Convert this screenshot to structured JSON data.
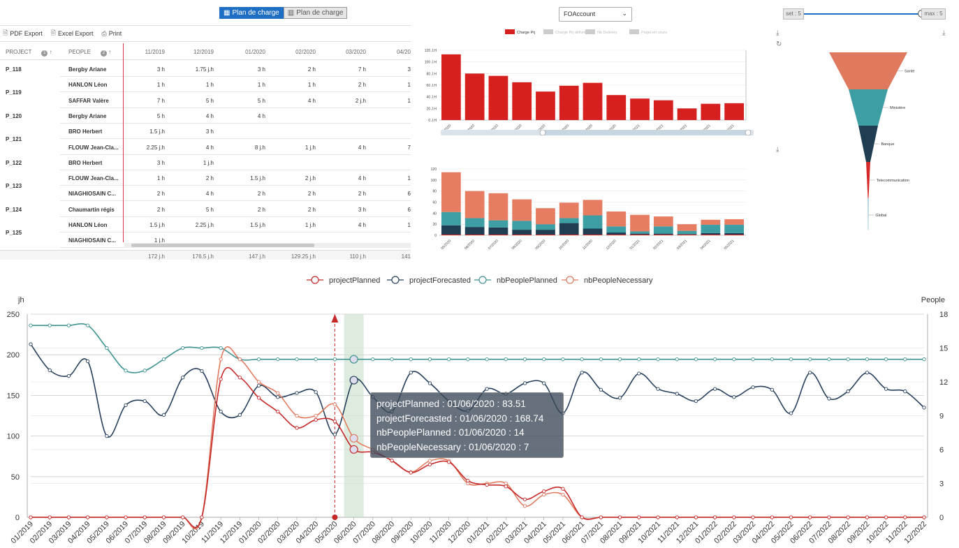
{
  "toggle": {
    "active_label": "Plan de charge",
    "inactive_label": "Plan de charge"
  },
  "toolbar": {
    "pdf": "PDF Export",
    "excel": "Excel Export",
    "print": "Print"
  },
  "grid": {
    "headers": {
      "project": "PROJECT",
      "people": "PEOPLE",
      "sort1": "1",
      "sort2": "2"
    },
    "months": [
      "11/2019",
      "12/2019",
      "01/2020",
      "02/2020",
      "03/2020",
      "04/20"
    ],
    "rows": [
      {
        "project": "P_118",
        "person": "Bergby Ariane",
        "values": [
          "3 h",
          "1.75 j.h",
          "3 h",
          "2 h",
          "7 h",
          "3"
        ]
      },
      {
        "project": "",
        "person": "HANLON Léon",
        "values": [
          "1 h",
          "1 h",
          "1 h",
          "1 h",
          "2 h",
          "1"
        ]
      },
      {
        "project": "",
        "person": "SAFFAR Valère",
        "values": [
          "7 h",
          "5 h",
          "5 h",
          "4 h",
          "2 j.h",
          "1"
        ]
      },
      {
        "project": "P_120",
        "person": "Bergby Ariane",
        "values": [
          "5 h",
          "4 h",
          "4 h",
          "",
          "",
          ""
        ]
      },
      {
        "project": "",
        "person": "BRO Herbert",
        "values": [
          "1.5 j.h",
          "3 h",
          "",
          "",
          "",
          ""
        ]
      },
      {
        "project": "",
        "person": "FLOUW Jean-Cla...",
        "values": [
          "2.25 j.h",
          "4 h",
          "8 j.h",
          "1 j.h",
          "4 h",
          "7"
        ]
      },
      {
        "project": "P_122",
        "person": "BRO Herbert",
        "values": [
          "3 h",
          "1 j.h",
          "",
          "",
          "",
          ""
        ]
      },
      {
        "project": "",
        "person": "FLOUW Jean-Cla...",
        "values": [
          "1 h",
          "2 h",
          "1.5 j.h",
          "2 j.h",
          "4 h",
          "1"
        ]
      },
      {
        "project": "",
        "person": "NIAGHIOSAIN C...",
        "values": [
          "2 h",
          "4 h",
          "2 h",
          "2 h",
          "2 h",
          "6"
        ]
      },
      {
        "project": "P_124",
        "person": "Chaumartin régis",
        "values": [
          "2 h",
          "5 h",
          "2 h",
          "2 h",
          "3 h",
          "6"
        ]
      },
      {
        "project": "",
        "person": "HANLON Léon",
        "values": [
          "1.5 j.h",
          "2.25 j.h",
          "1.5 j.h",
          "1 j.h",
          "4 h",
          "1"
        ]
      },
      {
        "project": "",
        "person": "NIAGHIOSAIN C...",
        "values": [
          "1 j.h",
          "",
          "",
          "",
          "",
          ""
        ]
      }
    ],
    "group_labels": [
      {
        "label": "P_119"
      },
      {
        "label": "P_121"
      },
      {
        "label": "P_123"
      },
      {
        "label": "P_125"
      }
    ],
    "totals": [
      "172 j.h",
      "176.5 j.h",
      "147 j.h",
      "129.25 j.h",
      "110 j.h",
      "141"
    ]
  },
  "account_select": {
    "value": "FOAccount"
  },
  "slider": {
    "left_label": "set : 5",
    "right_label": "max : 5",
    "value": 1.0
  },
  "bar_legend": [
    "Charge Prj",
    "Charge Prj délivrée",
    "Nb Delivery",
    "Projet en cours"
  ],
  "bar_months": [
    "05/2020",
    "06/2020",
    "07/2020",
    "08/2020",
    "09/2020",
    "10/2020",
    "11/2020",
    "12/2020",
    "01/2021",
    "02/2021",
    "03/2021",
    "04/2021",
    "05/2021"
  ],
  "bar_values": [
    113,
    80,
    76,
    65,
    49,
    59,
    64,
    43,
    37,
    34,
    20,
    28,
    29
  ],
  "bar_axis": {
    "ticks": [
      "0 J.H",
      "20 J.H",
      "40 J.H",
      "60 J.H",
      "80 J.H",
      "100 J.H",
      "120 J.H"
    ],
    "ymax": 120
  },
  "stack_axis": {
    "ticks": [
      "0",
      "20",
      "40",
      "60",
      "80",
      "100",
      "120"
    ],
    "ymax": 120
  },
  "stack_values": [
    {
      "navy": 18,
      "teal": 24,
      "salmon": 72
    },
    {
      "navy": 15,
      "teal": 16,
      "salmon": 49
    },
    {
      "navy": 14,
      "teal": 13,
      "salmon": 49
    },
    {
      "navy": 10,
      "teal": 16,
      "salmon": 39
    },
    {
      "navy": 10,
      "teal": 10,
      "salmon": 29
    },
    {
      "navy": 22,
      "teal": 9,
      "salmon": 28
    },
    {
      "navy": 12,
      "teal": 24,
      "salmon": 28
    },
    {
      "navy": 5,
      "teal": 11,
      "salmon": 27
    },
    {
      "navy": 3,
      "teal": 4,
      "salmon": 30
    },
    {
      "navy": 3,
      "teal": 13,
      "salmon": 18
    },
    {
      "navy": 2,
      "teal": 6,
      "salmon": 12
    },
    {
      "navy": 4,
      "teal": 15,
      "salmon": 9
    },
    {
      "navy": 4,
      "teal": 15,
      "salmon": 10
    }
  ],
  "funnel": [
    {
      "label": "Sante",
      "color": "#e07a5f"
    },
    {
      "label": "Ministère",
      "color": "#3d9ea3"
    },
    {
      "label": "Banque",
      "color": "#1f3e52"
    },
    {
      "label": "Telecommunication",
      "color": "#d62828"
    },
    {
      "label": "Global",
      "color": "#5aa6b4"
    }
  ],
  "legend": [
    "projectPlanned",
    "projectForecasted",
    "nbPeoplePlanned",
    "nbPeopleNecessary"
  ],
  "colors": {
    "planned": "#c62828",
    "forecasted": "#263f5c",
    "peoplePlanned": "#3f9391",
    "peopleNecessary": "#e07a5f",
    "bar": "#d62020"
  },
  "chart_data": {
    "type": "line",
    "xlabel": "",
    "ylabel": "jh",
    "y2label": "People",
    "ylim": [
      0,
      250
    ],
    "y2lim": [
      0,
      18
    ],
    "yticks": [
      "0",
      "50",
      "100",
      "150",
      "200",
      "250"
    ],
    "y2ticks": [
      "0",
      "3",
      "6",
      "9",
      "12",
      "15",
      "18"
    ],
    "x": [
      "01/2019",
      "02/2019",
      "03/2019",
      "04/2019",
      "05/2019",
      "06/2019",
      "07/2019",
      "08/2019",
      "09/2019",
      "10/2019",
      "11/2019",
      "12/2019",
      "01/2020",
      "02/2020",
      "03/2020",
      "04/2020",
      "05/2020",
      "06/2020",
      "07/2020",
      "08/2020",
      "09/2020",
      "10/2020",
      "11/2020",
      "12/2020",
      "01/2021",
      "02/2021",
      "03/2021",
      "04/2021",
      "05/2021",
      "06/2021",
      "07/2021",
      "08/2021",
      "09/2021",
      "10/2021",
      "11/2021",
      "12/2021",
      "01/2022",
      "02/2022",
      "03/2022",
      "04/2022",
      "05/2022",
      "06/2022",
      "07/2022",
      "08/2022",
      "09/2022",
      "10/2022",
      "11/2022",
      "12/2022"
    ],
    "series": [
      {
        "name": "projectPlanned",
        "axis": "left",
        "values": [
          0,
          0,
          0,
          0,
          0,
          0,
          0,
          0,
          0,
          0,
          170,
          172,
          147,
          130,
          110,
          120,
          118,
          83.51,
          80,
          70,
          55,
          65,
          68,
          45,
          40,
          38,
          22,
          32,
          35,
          0,
          0,
          0,
          0,
          0,
          0,
          0,
          0,
          0,
          0,
          0,
          0,
          0,
          0,
          0,
          0,
          0,
          0,
          0
        ]
      },
      {
        "name": "projectForecasted",
        "axis": "left",
        "values": [
          213,
          181,
          174,
          192,
          100,
          138,
          143,
          126,
          172,
          180,
          130,
          126,
          162,
          148,
          153,
          154,
          102,
          168.74,
          148,
          130,
          178,
          165,
          143,
          131,
          158,
          152,
          165,
          165,
          128,
          178,
          157,
          147,
          177,
          158,
          152,
          143,
          158,
          148,
          160,
          157,
          128,
          178,
          146,
          155,
          178,
          158,
          155,
          135
        ]
      },
      {
        "name": "nbPeoplePlanned",
        "axis": "right",
        "values": [
          17,
          17,
          17,
          17,
          15,
          13,
          13,
          14,
          15,
          15,
          15,
          14,
          14,
          14,
          14,
          14,
          14,
          14,
          14,
          14,
          14,
          14,
          14,
          14,
          14,
          14,
          14,
          14,
          14,
          14,
          14,
          14,
          14,
          14,
          14,
          14,
          14,
          14,
          14,
          14,
          14,
          14,
          14,
          14,
          14,
          14,
          14,
          14
        ]
      },
      {
        "name": "nbPeopleNecessary",
        "axis": "right",
        "values": [
          0,
          0,
          0,
          0,
          0,
          0,
          0,
          0,
          0,
          0,
          14,
          14,
          12,
          11,
          9,
          9,
          10,
          7,
          6,
          5,
          4,
          5,
          5,
          3,
          3,
          3,
          1,
          2,
          2,
          0,
          0,
          0,
          0,
          0,
          0,
          0,
          0,
          0,
          0,
          0,
          0,
          0,
          0,
          0,
          0,
          0,
          0,
          0
        ]
      }
    ],
    "current_month": "05/2020",
    "highlight_month": "06/2020",
    "tooltip": [
      "projectPlanned : 01/06/2020 : 83.51",
      "projectForecasted : 01/06/2020 : 168.74",
      "nbPeoplePlanned : 01/06/2020 : 14",
      "nbPeopleNecessary : 01/06/2020 : 7"
    ]
  }
}
